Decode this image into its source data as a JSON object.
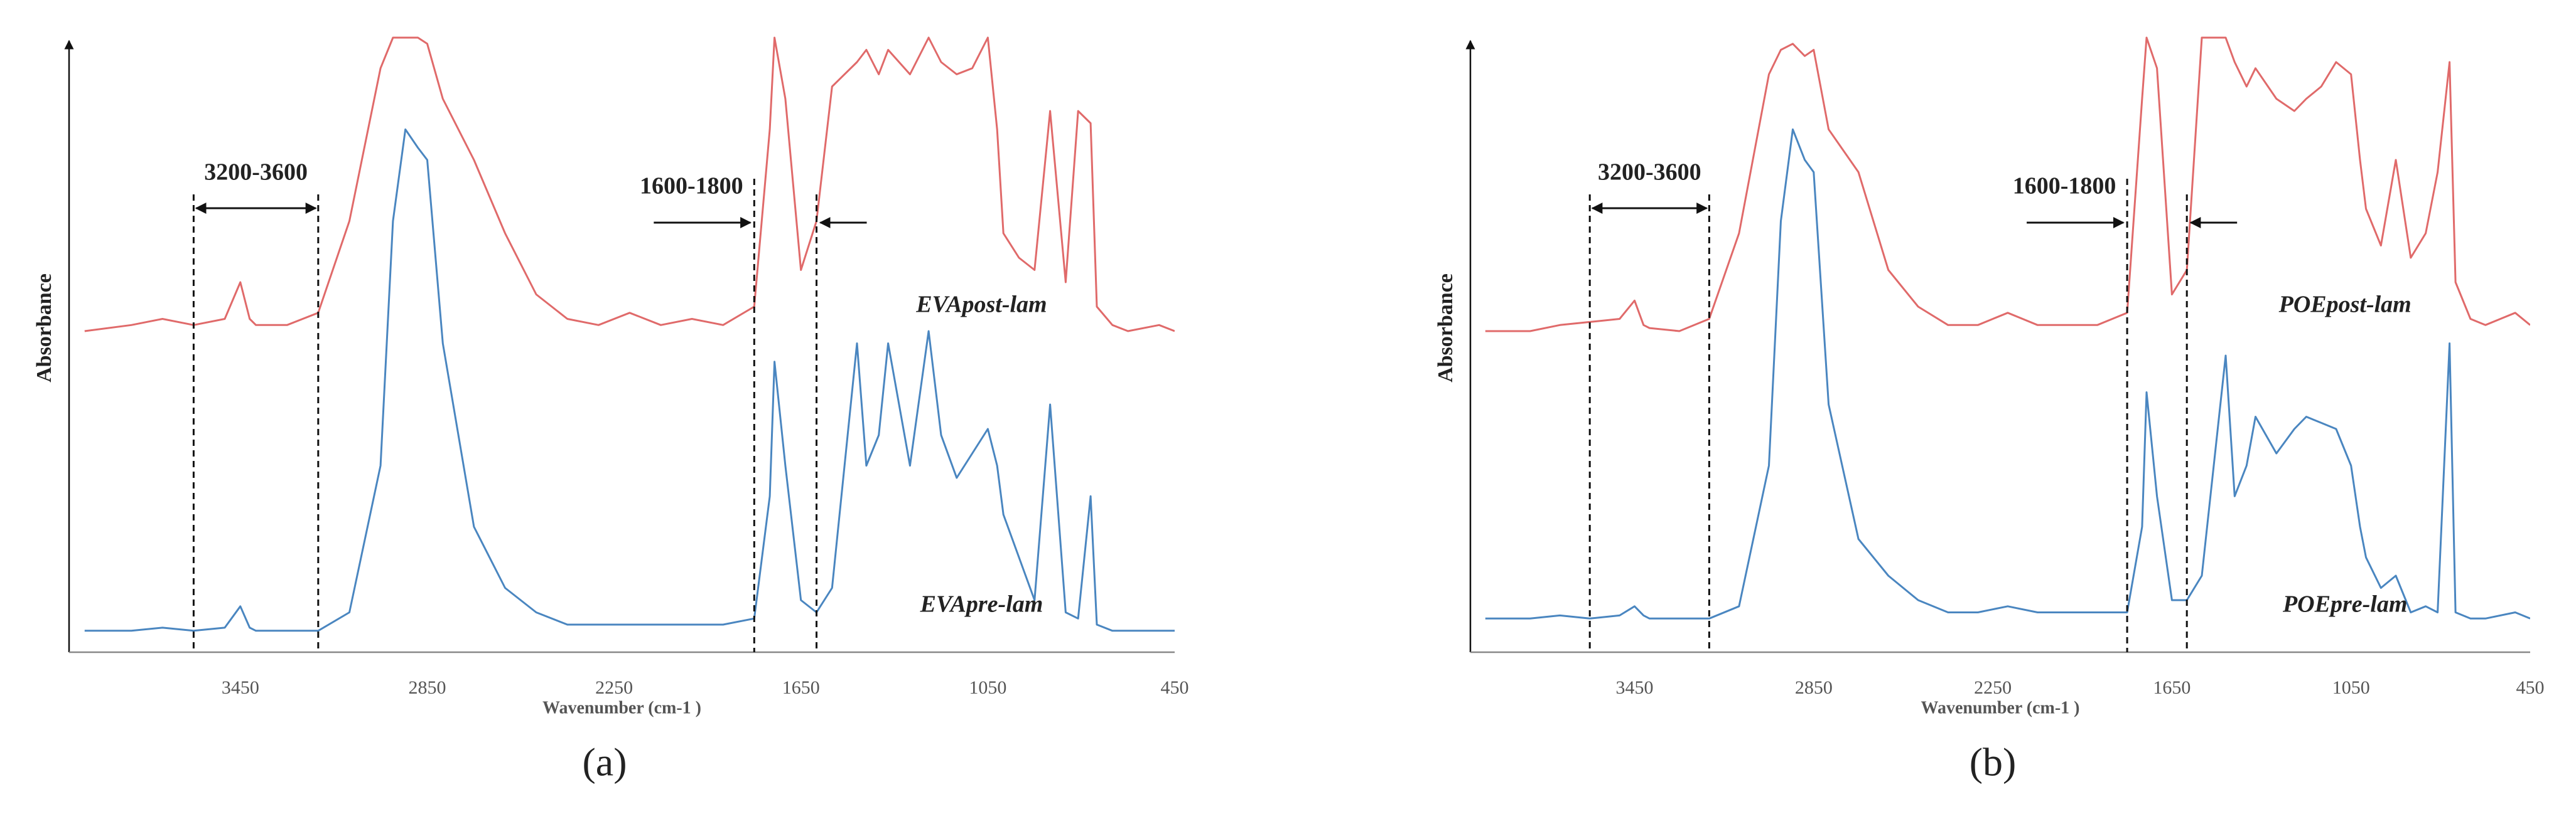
{
  "chart_data": [
    {
      "type": "line",
      "panel_label": "(a)",
      "xlabel": "Wavenumber (cm-1 )",
      "ylabel": "Absorbance",
      "xlim": [
        4000,
        450
      ],
      "ylim": [
        0,
        100
      ],
      "xticks": [
        3450,
        2850,
        2250,
        1650,
        1050,
        450
      ],
      "x": [
        3950,
        3800,
        3700,
        3600,
        3500,
        3450,
        3420,
        3400,
        3300,
        3200,
        3100,
        3000,
        2960,
        2920,
        2880,
        2850,
        2800,
        2700,
        2600,
        2500,
        2400,
        2300,
        2200,
        2100,
        2000,
        1900,
        1800,
        1750,
        1735,
        1700,
        1650,
        1600,
        1550,
        1470,
        1440,
        1400,
        1370,
        1300,
        1240,
        1200,
        1150,
        1100,
        1050,
        1020,
        1000,
        950,
        900,
        850,
        800,
        760,
        720,
        700,
        650,
        600,
        500,
        450
      ],
      "series": [
        {
          "name": "EVApost-lam",
          "color": "#e06a6a",
          "values": [
            52,
            53,
            54,
            53,
            54,
            60,
            54,
            53,
            53,
            55,
            70,
            95,
            100,
            100,
            100,
            99,
            90,
            80,
            68,
            58,
            54,
            53,
            55,
            53,
            54,
            53,
            56,
            85,
            100,
            90,
            62,
            70,
            92,
            96,
            98,
            94,
            98,
            94,
            100,
            96,
            94,
            95,
            100,
            85,
            68,
            64,
            62,
            88,
            60,
            88,
            86,
            56,
            53,
            52,
            53,
            52
          ]
        },
        {
          "name": "EVApre-lam",
          "color": "#4a86c0",
          "values": [
            3,
            3,
            3.5,
            3,
            3.5,
            7,
            3.5,
            3,
            3,
            3,
            6,
            30,
            70,
            85,
            82,
            80,
            50,
            20,
            10,
            6,
            4,
            4,
            4,
            4,
            4,
            4,
            5,
            25,
            47,
            30,
            8,
            6,
            10,
            50,
            30,
            35,
            50,
            30,
            52,
            35,
            28,
            32,
            36,
            30,
            22,
            15,
            8,
            40,
            6,
            5,
            25,
            4,
            3,
            3,
            3,
            3
          ]
        }
      ],
      "annotations": [
        {
          "text": "3200-3600",
          "x": [
            3600,
            3200
          ]
        },
        {
          "text": "1600-1800",
          "x": [
            1800,
            1600
          ]
        }
      ]
    },
    {
      "type": "line",
      "panel_label": "(b)",
      "xlabel": "Wavenumber (cm-1 )",
      "ylabel": "Absorbance",
      "xlim": [
        4000,
        450
      ],
      "ylim": [
        0,
        100
      ],
      "xticks": [
        3450,
        2850,
        2250,
        1650,
        1050,
        450
      ],
      "x": [
        3950,
        3800,
        3700,
        3600,
        3500,
        3450,
        3420,
        3400,
        3300,
        3200,
        3100,
        3000,
        2960,
        2920,
        2880,
        2850,
        2800,
        2700,
        2600,
        2500,
        2400,
        2300,
        2200,
        2100,
        2000,
        1900,
        1800,
        1750,
        1735,
        1700,
        1650,
        1600,
        1550,
        1470,
        1440,
        1400,
        1370,
        1300,
        1240,
        1200,
        1150,
        1100,
        1050,
        1020,
        1000,
        950,
        900,
        850,
        800,
        760,
        720,
        700,
        650,
        600,
        500,
        450
      ],
      "series": [
        {
          "name": "POEpost-lam",
          "color": "#e06a6a",
          "values": [
            52,
            52,
            53,
            53.5,
            54,
            57,
            53,
            52.5,
            52,
            54,
            68,
            94,
            98,
            99,
            97,
            98,
            85,
            78,
            62,
            56,
            53,
            53,
            55,
            53,
            53,
            53,
            55,
            90,
            100,
            95,
            58,
            62,
            100,
            100,
            96,
            92,
            95,
            90,
            88,
            90,
            92,
            96,
            94,
            80,
            72,
            66,
            80,
            64,
            68,
            78,
            96,
            60,
            54,
            53,
            55,
            53
          ]
        },
        {
          "name": "POEpre-lam",
          "color": "#4a86c0",
          "values": [
            5,
            5,
            5.5,
            5,
            5.5,
            7,
            5.5,
            5,
            5,
            5,
            7,
            30,
            70,
            85,
            80,
            78,
            40,
            18,
            12,
            8,
            6,
            6,
            7,
            6,
            6,
            6,
            6,
            20,
            42,
            25,
            8,
            8,
            12,
            48,
            25,
            30,
            38,
            32,
            36,
            38,
            37,
            36,
            30,
            20,
            15,
            10,
            12,
            6,
            7,
            6,
            50,
            6,
            5,
            5,
            6,
            5
          ]
        }
      ],
      "annotations": [
        {
          "text": "3200-3600",
          "x": [
            3600,
            3200
          ]
        },
        {
          "text": "1600-1800",
          "x": [
            1800,
            1600
          ]
        }
      ]
    }
  ]
}
